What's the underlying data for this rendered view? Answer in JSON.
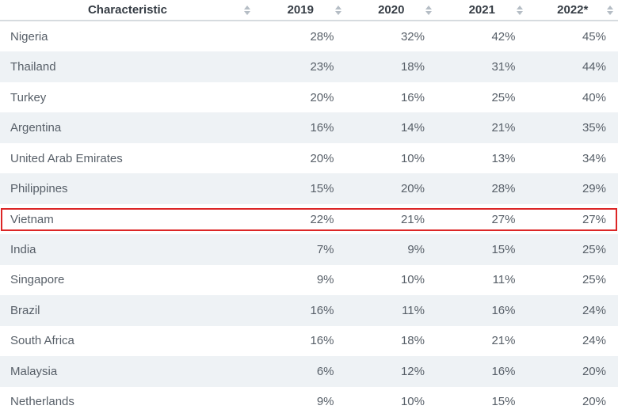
{
  "colors": {
    "highlight_border": "#dc2626",
    "row_stripe": "#eef2f5",
    "header_text": "#353c44",
    "cell_text": "#575f68",
    "sort_arrow": "#b5bdc5",
    "header_divider": "#d6dbdf"
  },
  "table": {
    "columns": [
      {
        "label": "Characteristic",
        "sort_icon": "sort-arrows"
      },
      {
        "label": "2019",
        "sort_icon": "sort-arrows"
      },
      {
        "label": "2020",
        "sort_icon": "sort-arrows"
      },
      {
        "label": "2021",
        "sort_icon": "sort-arrows"
      },
      {
        "label": "2022*",
        "sort_icon": "sort-arrows"
      }
    ],
    "rows": [
      {
        "characteristic": "Nigeria",
        "values": [
          "28%",
          "32%",
          "42%",
          "45%"
        ],
        "highlighted": false
      },
      {
        "characteristic": "Thailand",
        "values": [
          "23%",
          "18%",
          "31%",
          "44%"
        ],
        "highlighted": false
      },
      {
        "characteristic": "Turkey",
        "values": [
          "20%",
          "16%",
          "25%",
          "40%"
        ],
        "highlighted": false
      },
      {
        "characteristic": "Argentina",
        "values": [
          "16%",
          "14%",
          "21%",
          "35%"
        ],
        "highlighted": false
      },
      {
        "characteristic": "United Arab Emirates",
        "values": [
          "20%",
          "10%",
          "13%",
          "34%"
        ],
        "highlighted": false
      },
      {
        "characteristic": "Philippines",
        "values": [
          "15%",
          "20%",
          "28%",
          "29%"
        ],
        "highlighted": false
      },
      {
        "characteristic": "Vietnam",
        "values": [
          "22%",
          "21%",
          "27%",
          "27%"
        ],
        "highlighted": true
      },
      {
        "characteristic": "India",
        "values": [
          "7%",
          "9%",
          "15%",
          "25%"
        ],
        "highlighted": false
      },
      {
        "characteristic": "Singapore",
        "values": [
          "9%",
          "10%",
          "11%",
          "25%"
        ],
        "highlighted": false
      },
      {
        "characteristic": "Brazil",
        "values": [
          "16%",
          "11%",
          "16%",
          "24%"
        ],
        "highlighted": false
      },
      {
        "characteristic": "South Africa",
        "values": [
          "16%",
          "18%",
          "21%",
          "24%"
        ],
        "highlighted": false
      },
      {
        "characteristic": "Malaysia",
        "values": [
          "6%",
          "12%",
          "16%",
          "20%"
        ],
        "highlighted": false
      },
      {
        "characteristic": "Netherlands",
        "values": [
          "9%",
          "10%",
          "15%",
          "20%"
        ],
        "highlighted": false
      }
    ]
  },
  "chart_data": {
    "type": "table",
    "title": "",
    "categories": [
      "Nigeria",
      "Thailand",
      "Turkey",
      "Argentina",
      "United Arab Emirates",
      "Philippines",
      "Vietnam",
      "India",
      "Singapore",
      "Brazil",
      "South Africa",
      "Malaysia",
      "Netherlands"
    ],
    "series": [
      {
        "name": "2019",
        "values": [
          28,
          23,
          20,
          16,
          20,
          15,
          22,
          7,
          9,
          16,
          16,
          6,
          9
        ]
      },
      {
        "name": "2020",
        "values": [
          32,
          18,
          16,
          14,
          10,
          20,
          21,
          9,
          10,
          11,
          18,
          12,
          10
        ]
      },
      {
        "name": "2021",
        "values": [
          42,
          31,
          25,
          21,
          13,
          28,
          27,
          15,
          11,
          16,
          21,
          16,
          15
        ]
      },
      {
        "name": "2022*",
        "values": [
          45,
          44,
          40,
          35,
          34,
          29,
          27,
          25,
          25,
          24,
          24,
          20,
          20
        ]
      }
    ],
    "unit": "%",
    "highlighted_category": "Vietnam",
    "layout": {
      "sorted_by": "2022* descending",
      "row_striping": true,
      "sortable_columns": true
    }
  }
}
